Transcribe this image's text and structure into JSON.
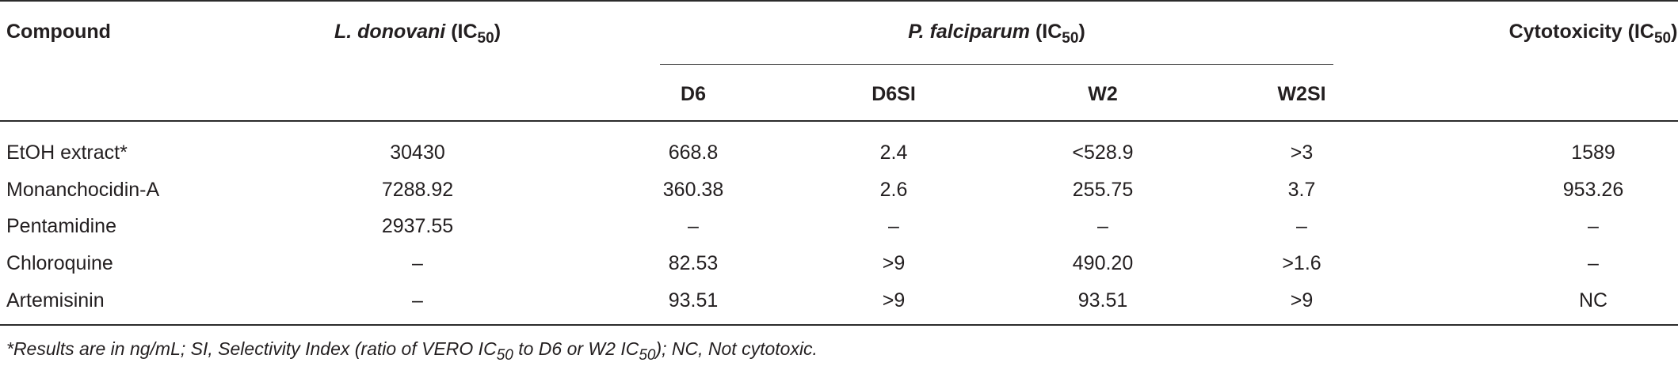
{
  "table": {
    "headers": {
      "compound": "Compound",
      "ldonovani_name": "L. donovani",
      "ldonovani_unit": "(IC",
      "ldonovani_sub": "50",
      "ldonovani_close": ")",
      "pfalciparum_name": "P. falciparum",
      "pfalciparum_unit": "(IC",
      "pfalciparum_sub": "50",
      "pfalciparum_close": ")",
      "cyto": "Cytotoxicity (IC",
      "cyto_sub": "50",
      "cyto_close": ")",
      "d6": "D6",
      "d6si": "D6SI",
      "w2": "W2",
      "w2si": "W2SI"
    },
    "rows": [
      {
        "compound": "EtOH extract*",
        "ldon": "30430",
        "d6": "668.8",
        "d6si": "2.4",
        "w2": "<528.9",
        "w2si": ">3",
        "cyto": "1589"
      },
      {
        "compound": "Monanchocidin-A",
        "ldon": "7288.92",
        "d6": "360.38",
        "d6si": "2.6",
        "w2": "255.75",
        "w2si": "3.7",
        "cyto": "953.26"
      },
      {
        "compound": "Pentamidine",
        "ldon": "2937.55",
        "d6": "–",
        "d6si": "–",
        "w2": "–",
        "w2si": "–",
        "cyto": "–"
      },
      {
        "compound": "Chloroquine",
        "ldon": "–",
        "d6": "82.53",
        "d6si": ">9",
        "w2": "490.20",
        "w2si": ">1.6",
        "cyto": "–"
      },
      {
        "compound": "Artemisinin",
        "ldon": "–",
        "d6": "93.51",
        "d6si": ">9",
        "w2": "93.51",
        "w2si": ">9",
        "cyto": "NC"
      }
    ]
  },
  "footnote": {
    "part1": "*Results are in ng/mL; SI, Selectivity Index (ratio of VERO IC",
    "sub": "50",
    "part2": " to D6 or W2 IC",
    "sub2": "50",
    "part3": "); NC, Not cytotoxic."
  }
}
